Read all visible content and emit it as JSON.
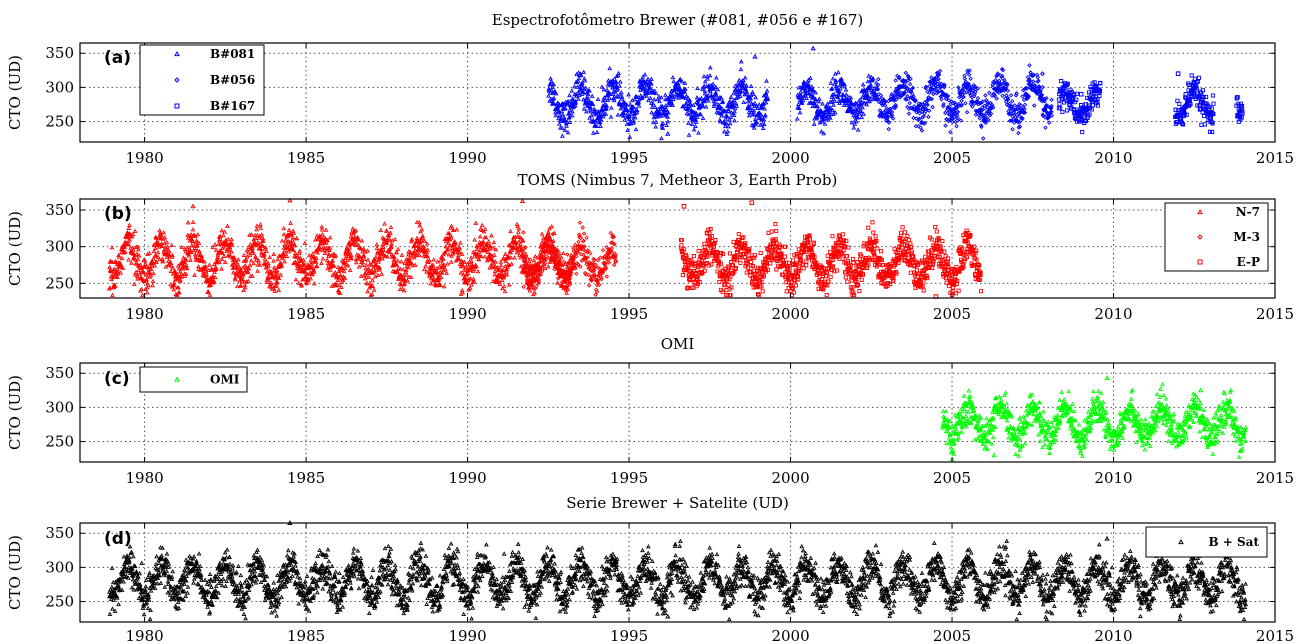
{
  "figure": {
    "panels": [
      {
        "id": "a",
        "title": "Espectrofotômetro Brewer (#081, #056 e #167)",
        "panel_label": "(a)",
        "ylabel": "CTO (UD)",
        "legend_position": "top-left",
        "legend": [
          {
            "label": "B#081",
            "color": "#0000ff",
            "marker": "triangle"
          },
          {
            "label": "B#056",
            "color": "#0000ff",
            "marker": "diamond"
          },
          {
            "label": "B#167",
            "color": "#0000ff",
            "marker": "square"
          }
        ]
      },
      {
        "id": "b",
        "title": "TOMS (Nimbus 7, Metheor 3, Earth Prob)",
        "panel_label": "(b)",
        "ylabel": "CTO (UD)",
        "legend_position": "top-right",
        "legend": [
          {
            "label": "N-7",
            "color": "#ff0000",
            "marker": "triangle"
          },
          {
            "label": "M-3",
            "color": "#ff0000",
            "marker": "diamond"
          },
          {
            "label": "E-P",
            "color": "#ff0000",
            "marker": "square"
          }
        ]
      },
      {
        "id": "c",
        "title": "OMI",
        "panel_label": "(c)",
        "ylabel": "CTO (UD)",
        "legend_position": "top-left",
        "legend": [
          {
            "label": "OMI",
            "color": "#00ff00",
            "marker": "triangle"
          }
        ]
      },
      {
        "id": "d",
        "title": "Serie Brewer + Satelite (UD)",
        "panel_label": "(d)",
        "ylabel": "CTO (UD)",
        "legend_position": "top-right",
        "legend": [
          {
            "label": "B + Sat",
            "color": "#000000",
            "marker": "triangle"
          }
        ]
      }
    ]
  },
  "chart_data": [
    {
      "type": "scatter",
      "title": "Espectrofotômetro Brewer (#081, #056 e #167)",
      "ylabel": "CTO (UD)",
      "xlabel": "",
      "xlim": [
        1978,
        2015
      ],
      "ylim": [
        220,
        365
      ],
      "xticks": [
        1980,
        1985,
        1990,
        1995,
        2000,
        2005,
        2010,
        2015
      ],
      "yticks": [
        250,
        300,
        350
      ],
      "grid": true,
      "series": [
        {
          "name": "B#081",
          "color": "#0000ff",
          "marker": "triangle",
          "segments": [
            [
              1992.5,
              1999.3
            ],
            [
              2000.2,
              2002.7
            ]
          ],
          "mean": 278,
          "seasonal_amplitude": 22,
          "noise": 12,
          "sample_points": [
            [
              1993.0,
              275
            ],
            [
              1994.5,
              300
            ],
            [
              1996.2,
              232
            ],
            [
              1998.9,
              345
            ],
            [
              2000.7,
              357
            ],
            [
              2001.5,
              280
            ]
          ]
        },
        {
          "name": "B#056",
          "color": "#0000ff",
          "marker": "diamond",
          "segments": [
            [
              2002.7,
              2008.1
            ]
          ],
          "mean": 282,
          "seasonal_amplitude": 22,
          "noise": 12,
          "sample_points": [
            [
              2003.5,
              310
            ],
            [
              2005.0,
              255
            ],
            [
              2007.8,
              320
            ]
          ]
        },
        {
          "name": "B#167",
          "color": "#0000ff",
          "marker": "square",
          "segments": [
            [
              2008.3,
              2009.6
            ],
            [
              2011.9,
              2013.1
            ],
            [
              2013.8,
              2014.0
            ]
          ],
          "mean": 275,
          "seasonal_amplitude": 18,
          "noise": 11,
          "sample_points": [
            [
              2009.0,
              290
            ],
            [
              2012.0,
              320
            ],
            [
              2013.9,
              262
            ]
          ]
        }
      ]
    },
    {
      "type": "scatter",
      "title": "TOMS (Nimbus 7, Metheor 3, Earth Prob)",
      "ylabel": "CTO (UD)",
      "xlabel": "",
      "xlim": [
        1978,
        2015
      ],
      "ylim": [
        230,
        365
      ],
      "xticks": [
        1980,
        1985,
        1990,
        1995,
        2000,
        2005,
        2010,
        2015
      ],
      "yticks": [
        250,
        300,
        350
      ],
      "grid": true,
      "series": [
        {
          "name": "N-7",
          "color": "#ff0000",
          "marker": "triangle",
          "segments": [
            [
              1978.9,
              1993.3
            ]
          ],
          "mean": 282,
          "seasonal_amplitude": 24,
          "noise": 13,
          "sample_points": [
            [
              1981.5,
              355
            ],
            [
              1984.5,
              363
            ],
            [
              1991.7,
              362
            ]
          ]
        },
        {
          "name": "M-3",
          "color": "#ff0000",
          "marker": "diamond",
          "segments": [
            [
              1991.7,
              1994.6
            ]
          ],
          "mean": 277,
          "seasonal_amplitude": 20,
          "noise": 12,
          "sample_points": [
            [
              1993.5,
              312
            ]
          ]
        },
        {
          "name": "E-P",
          "color": "#ff0000",
          "marker": "square",
          "segments": [
            [
              1996.6,
              2005.9
            ]
          ],
          "mean": 278,
          "seasonal_amplitude": 22,
          "noise": 12,
          "sample_points": [
            [
              1996.7,
              355
            ],
            [
              1998.8,
              360
            ],
            [
              2004.5,
              232
            ]
          ]
        }
      ]
    },
    {
      "type": "scatter",
      "title": "OMI",
      "ylabel": "CTO (UD)",
      "xlabel": "",
      "xlim": [
        1978,
        2015
      ],
      "ylim": [
        220,
        365
      ],
      "xticks": [
        1980,
        1985,
        1990,
        1995,
        2000,
        2005,
        2010,
        2015
      ],
      "yticks": [
        250,
        300,
        350
      ],
      "grid": true,
      "series": [
        {
          "name": "OMI",
          "color": "#00ff00",
          "marker": "triangle",
          "segments": [
            [
              2004.7,
              2014.1
            ]
          ],
          "mean": 277,
          "seasonal_amplitude": 21,
          "noise": 12,
          "sample_points": [
            [
              2009.8,
              343
            ],
            [
              2006.3,
              230
            ],
            [
              2012.7,
              325
            ]
          ]
        }
      ]
    },
    {
      "type": "scatter",
      "title": "Serie Brewer + Satelite (UD)",
      "ylabel": "CTO (UD)",
      "xlabel": "",
      "xlim": [
        1978,
        2015
      ],
      "ylim": [
        220,
        365
      ],
      "xticks": [
        1980,
        1985,
        1990,
        1995,
        2000,
        2005,
        2010,
        2015
      ],
      "yticks": [
        250,
        300,
        350
      ],
      "grid": true,
      "series": [
        {
          "name": "B + Sat",
          "color": "#000000",
          "marker": "triangle",
          "segments": [
            [
              1978.9,
              2014.1
            ]
          ],
          "mean": 280,
          "seasonal_amplitude": 24,
          "noise": 13,
          "sample_points": [
            [
              1984.5,
              365
            ],
            [
              1996.2,
              228
            ],
            [
              2009.8,
              342
            ]
          ]
        }
      ]
    }
  ]
}
